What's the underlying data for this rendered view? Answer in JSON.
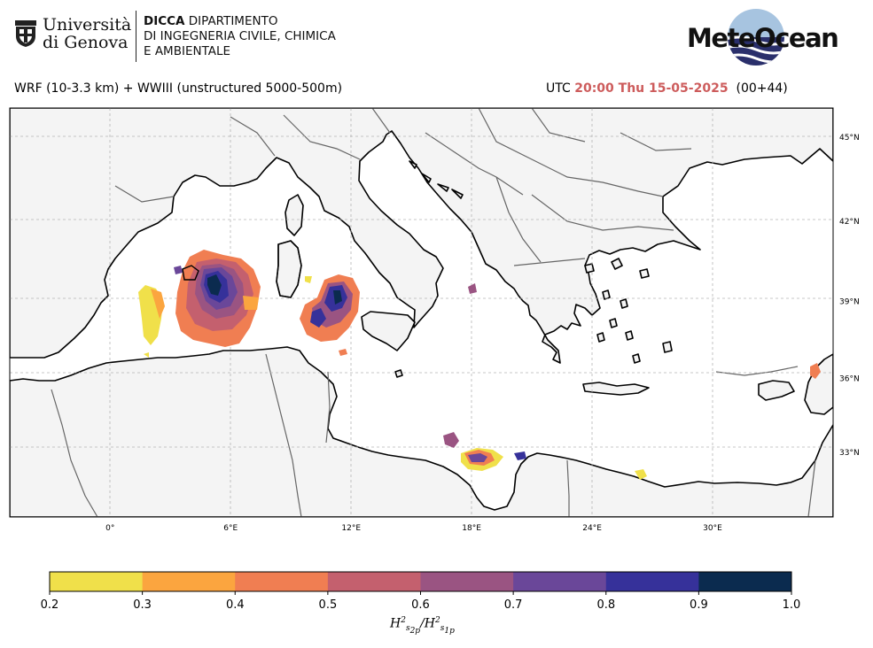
{
  "header": {
    "university_line1": "Università",
    "university_line2": "di Genova",
    "dept_bold": "DICCA",
    "dept_line1_rest": " DIPARTIMENTO",
    "dept_line2": "DI INGEGNERIA CIVILE, CHIMICA",
    "dept_line3": "E AMBIENTALE",
    "brand": "MeteOcean"
  },
  "titles": {
    "left": "WRF (10-3.3 km) + WWIII (unstructured 5000-500m)",
    "utc_label": "UTC",
    "timestamp": "20:00 Thu 15-05-2025",
    "lead": "(00+44)"
  },
  "map": {
    "lon_ticks": [
      {
        "value": 0,
        "label": "0°"
      },
      {
        "value": 6,
        "label": "6°E"
      },
      {
        "value": 12,
        "label": "12°E"
      },
      {
        "value": 18,
        "label": "18°E"
      },
      {
        "value": 24,
        "label": "24°E"
      },
      {
        "value": 30,
        "label": "30°E"
      }
    ],
    "lat_ticks": [
      {
        "value": 45,
        "label": "45°N"
      },
      {
        "value": 42,
        "label": "42°N"
      },
      {
        "value": 39,
        "label": "39°N"
      },
      {
        "value": 36,
        "label": "36°N"
      },
      {
        "value": 33,
        "label": "33°N"
      }
    ],
    "extent": {
      "lon": [
        -5,
        36
      ],
      "lat": [
        30.3,
        46
      ]
    },
    "land_color": "#f4f4f4",
    "sea_color": "#ffffff",
    "coast_color": "#000000",
    "border_color": "#666666",
    "grid": true
  },
  "colorbar": {
    "ticks": [
      "0.2",
      "0.3",
      "0.4",
      "0.5",
      "0.6",
      "0.7",
      "0.8",
      "0.9",
      "1.0"
    ],
    "colors": [
      "#f0e04a",
      "#fba53f",
      "#f07e52",
      "#c4606e",
      "#9a5482",
      "#6a4799",
      "#36319a",
      "#0b2b4f"
    ]
  }
}
